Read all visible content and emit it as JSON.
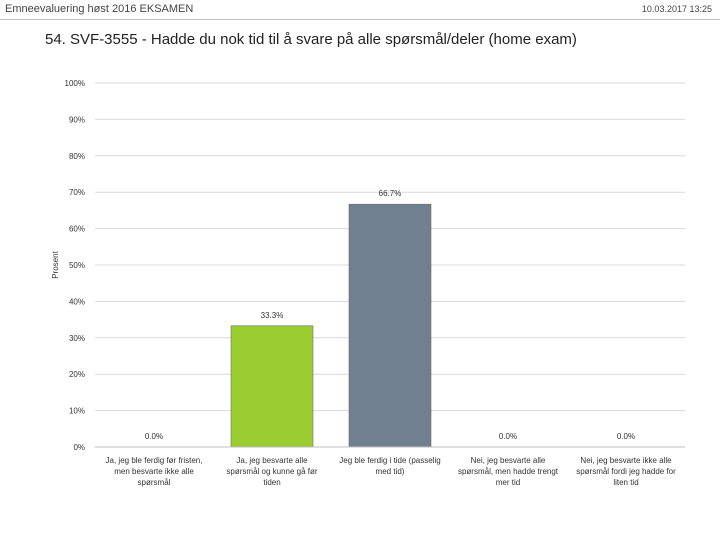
{
  "header": {
    "survey": "Emneevaluering høst 2016 EKSAMEN",
    "datetime": "10.03.2017 13:25"
  },
  "chart_data": {
    "type": "bar",
    "title": "54. SVF-3555 - Hadde du nok tid til å svare på alle spørsmål/deler (home exam)",
    "ylabel": "Prosent",
    "xlabel": "",
    "ylim": [
      0,
      100
    ],
    "yticks": [
      0,
      10,
      20,
      30,
      40,
      50,
      60,
      70,
      80,
      90,
      100
    ],
    "ytick_labels": [
      "0%",
      "10%",
      "20%",
      "30%",
      "40%",
      "50%",
      "60%",
      "70%",
      "80%",
      "90%",
      "100%"
    ],
    "grid": true,
    "categories": [
      [
        "Ja, jeg ble ferdig før fristen,",
        "men besvarte ikke alle",
        "spørsmål"
      ],
      [
        "Ja, jeg besvarte alle",
        "spørsmål og kunne gå før",
        "tiden"
      ],
      [
        "Jeg ble ferdig i tide (passelig",
        "med tid)"
      ],
      [
        "Nei, jeg besvarte alle",
        "spørsmål, men hadde trengt",
        "mer tid"
      ],
      [
        "Nei, jeg besvarte ikke alle",
        "spørsmål fordi jeg hadde for",
        "liten tid"
      ]
    ],
    "values": [
      0.0,
      33.3,
      66.7,
      0.0,
      0.0
    ],
    "data_labels": [
      "0.0%",
      "33.3%",
      "66.7%",
      "0.0%",
      "0.0%"
    ],
    "bar_colors": [
      "#9acd32",
      "#9acd32",
      "#708090",
      "#9acd32",
      "#9acd32"
    ]
  }
}
